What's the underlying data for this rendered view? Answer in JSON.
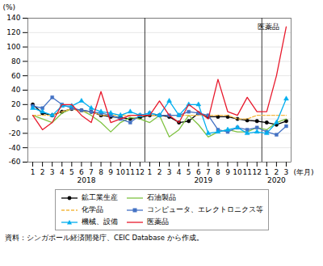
{
  "chart_data": {
    "type": "line",
    "categories": [
      "1",
      "2",
      "3",
      "4",
      "5",
      "6",
      "7",
      "8",
      "9",
      "10",
      "11",
      "12",
      "1",
      "2",
      "3",
      "4",
      "5",
      "6",
      "7",
      "8",
      "9",
      "10",
      "11",
      "12",
      "1",
      "2",
      "3"
    ],
    "year_labels": [
      "2018",
      "2019",
      "2020"
    ],
    "xlabel": "(年月)",
    "ylabel": "(%)",
    "ylim": [
      -60,
      140
    ],
    "yticks": [
      -60,
      -40,
      -20,
      0,
      20,
      40,
      60,
      80,
      100,
      120,
      140
    ],
    "grid": true,
    "legend": "bottom",
    "series": [
      {
        "name": "鉱工業生産",
        "color": "#000000",
        "line_style": "solid",
        "marker": "circle",
        "values": [
          20,
          8,
          5,
          10,
          14,
          12,
          10,
          5,
          3,
          2,
          0,
          2,
          5,
          5,
          3,
          -5,
          -3,
          8,
          3,
          3,
          3,
          0,
          -2,
          -3,
          -5,
          -8,
          -3
        ]
      },
      {
        "name": "石油製品",
        "color": "#7fc241",
        "line_style": "solid",
        "values": [
          5,
          0,
          -5,
          8,
          14,
          12,
          5,
          -5,
          -18,
          -5,
          2,
          0,
          -5,
          5,
          -25,
          -15,
          5,
          -8,
          -25,
          -18,
          -15,
          -18,
          -18,
          -12,
          -15,
          -5,
          0
        ]
      },
      {
        "name": "化学品",
        "color": "#f4b942",
        "line_style": "dashed",
        "values": [
          5,
          5,
          5,
          10,
          14,
          10,
          10,
          5,
          5,
          5,
          5,
          5,
          5,
          5,
          5,
          5,
          5,
          5,
          5,
          5,
          5,
          0,
          0,
          5,
          5,
          5,
          5
        ]
      },
      {
        "name": "コンピュータ、エレクトロニクス等",
        "color": "#4472c4",
        "line_style": "solid",
        "marker": "square",
        "values": [
          18,
          15,
          30,
          20,
          15,
          12,
          10,
          8,
          5,
          0,
          -5,
          5,
          8,
          5,
          5,
          5,
          10,
          8,
          5,
          -15,
          -18,
          -12,
          -15,
          -12,
          -18,
          -22,
          -10
        ]
      },
      {
        "name": "機械、設備",
        "color": "#00aeef",
        "line_style": "solid",
        "marker": "triangle",
        "values": [
          15,
          10,
          5,
          18,
          18,
          25,
          15,
          10,
          8,
          5,
          10,
          5,
          8,
          5,
          25,
          5,
          20,
          20,
          -20,
          -18,
          -15,
          -12,
          -20,
          -18,
          -20,
          -5,
          28
        ]
      },
      {
        "name": "医薬品",
        "color": "#e8192c",
        "line_style": "solid",
        "values": [
          5,
          -15,
          -5,
          20,
          20,
          5,
          -5,
          38,
          -5,
          0,
          5,
          5,
          5,
          25,
          5,
          -5,
          20,
          10,
          0,
          55,
          10,
          5,
          30,
          10,
          10,
          60,
          128
        ]
      }
    ],
    "annotations": [
      {
        "text": "医薬品",
        "series": "医薬品"
      }
    ],
    "caption": "資料：シンガポール経済開発庁、CEIC Database から作成。"
  }
}
